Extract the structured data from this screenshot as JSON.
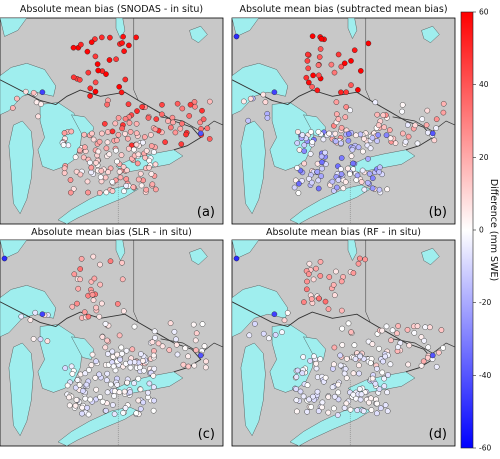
{
  "chart_data": [
    {
      "type": "scatter",
      "title": "Absolute mean bias (SNODAS - in situ)",
      "panel_label": "(a)",
      "bias_pattern": "strong_positive",
      "seed": 11
    },
    {
      "type": "scatter",
      "title": "Absolute mean bias (subtracted mean bias)",
      "panel_label": "(b)",
      "bias_pattern": "mixed",
      "seed": 23
    },
    {
      "type": "scatter",
      "title": "Absolute mean bias (SLR - in situ)",
      "panel_label": "(c)",
      "bias_pattern": "weak",
      "seed": 37
    },
    {
      "type": "scatter",
      "title": "Absolute mean bias (RF - in situ)",
      "panel_label": "(d)",
      "bias_pattern": "weak",
      "seed": 53
    }
  ],
  "colorbar": {
    "label": "Difference (mm SWE)",
    "min": -60,
    "max": 60,
    "ticks": [
      60,
      40,
      20,
      0,
      -20,
      -40,
      -60
    ],
    "colors": {
      "high": "#ff0000",
      "mid": "#ffffff",
      "low": "#0000ff"
    }
  },
  "map_colors": {
    "land": "#c8c8c8",
    "water": "#9feeee",
    "border": "#333333"
  }
}
